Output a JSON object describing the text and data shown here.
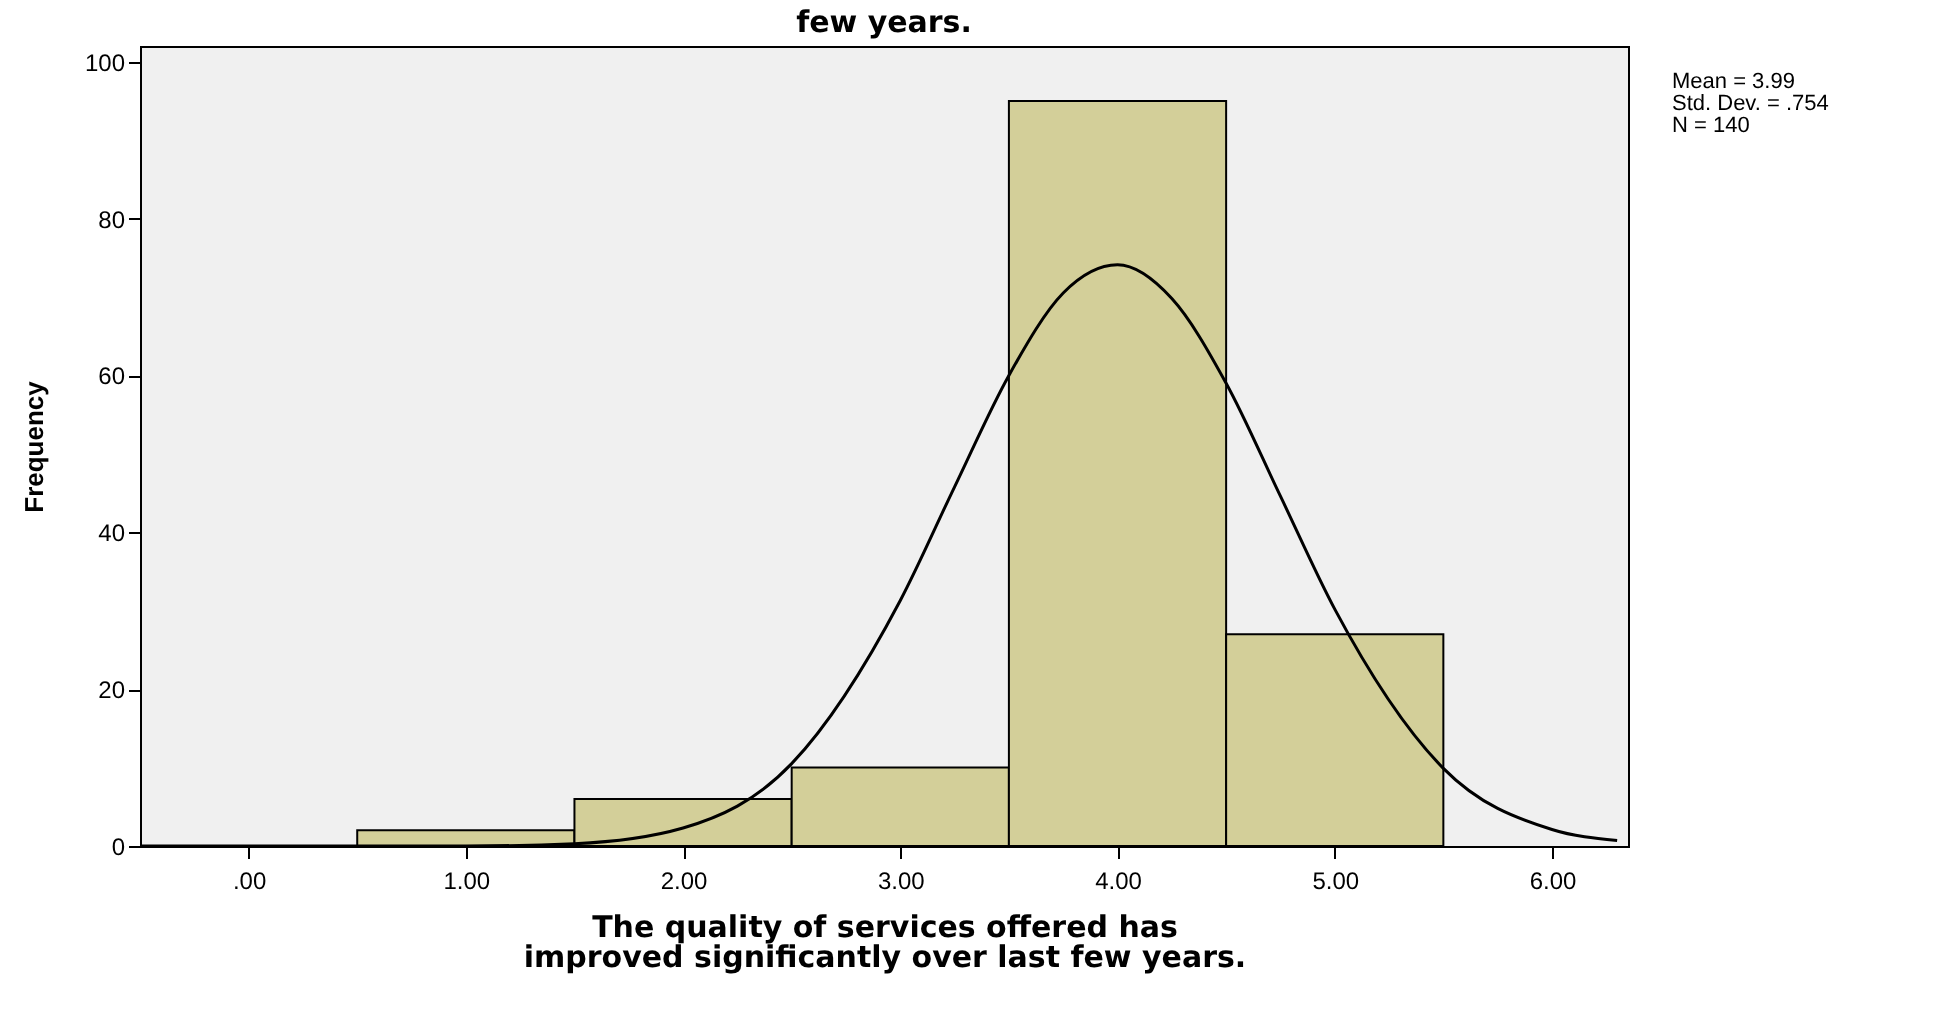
{
  "chart_data": {
    "type": "histogram",
    "title": "few years.",
    "xlabel": "The quality of services offered has improved significantly over last few years.",
    "ylabel": "Frequency",
    "bins": [
      0.5,
      1.5,
      2.5,
      3.5,
      4.5,
      5.5
    ],
    "values": [
      2,
      6,
      10,
      95,
      27
    ],
    "color": "#d3cf99",
    "series": [
      {
        "type": "line",
        "color": "#000000",
        "x": [
          -0.5,
          0.5,
          1.0,
          1.5,
          2.0,
          2.5,
          3.0,
          3.25,
          3.5,
          3.75,
          4.0,
          4.25,
          4.5,
          4.75,
          5.0,
          5.5,
          6.0,
          6.3
        ],
        "values": [
          0,
          0,
          0,
          0.3,
          2.3,
          10.5,
          31.3,
          45.8,
          60.0,
          70.5,
          74.1,
          69.8,
          59.0,
          44.6,
          30.2,
          9.9,
          2.1,
          0.7
        ]
      }
    ],
    "xlim": [
      -0.5,
      6.35
    ],
    "xticks": [
      {
        "value": 0,
        "label": ".00"
      },
      {
        "value": 1,
        "label": "1.00"
      },
      {
        "value": 2,
        "label": "2.00"
      },
      {
        "value": 3,
        "label": "3.00"
      },
      {
        "value": 4,
        "label": "4.00"
      },
      {
        "value": 5,
        "label": "5.00"
      },
      {
        "value": 6,
        "label": "6.00"
      }
    ],
    "ylim": [
      0,
      102
    ],
    "yticks": [
      0,
      20,
      40,
      60,
      80,
      100
    ],
    "annotations": [
      "Mean = 3.99",
      "Std. Dev. = .754",
      "N = 140"
    ]
  }
}
